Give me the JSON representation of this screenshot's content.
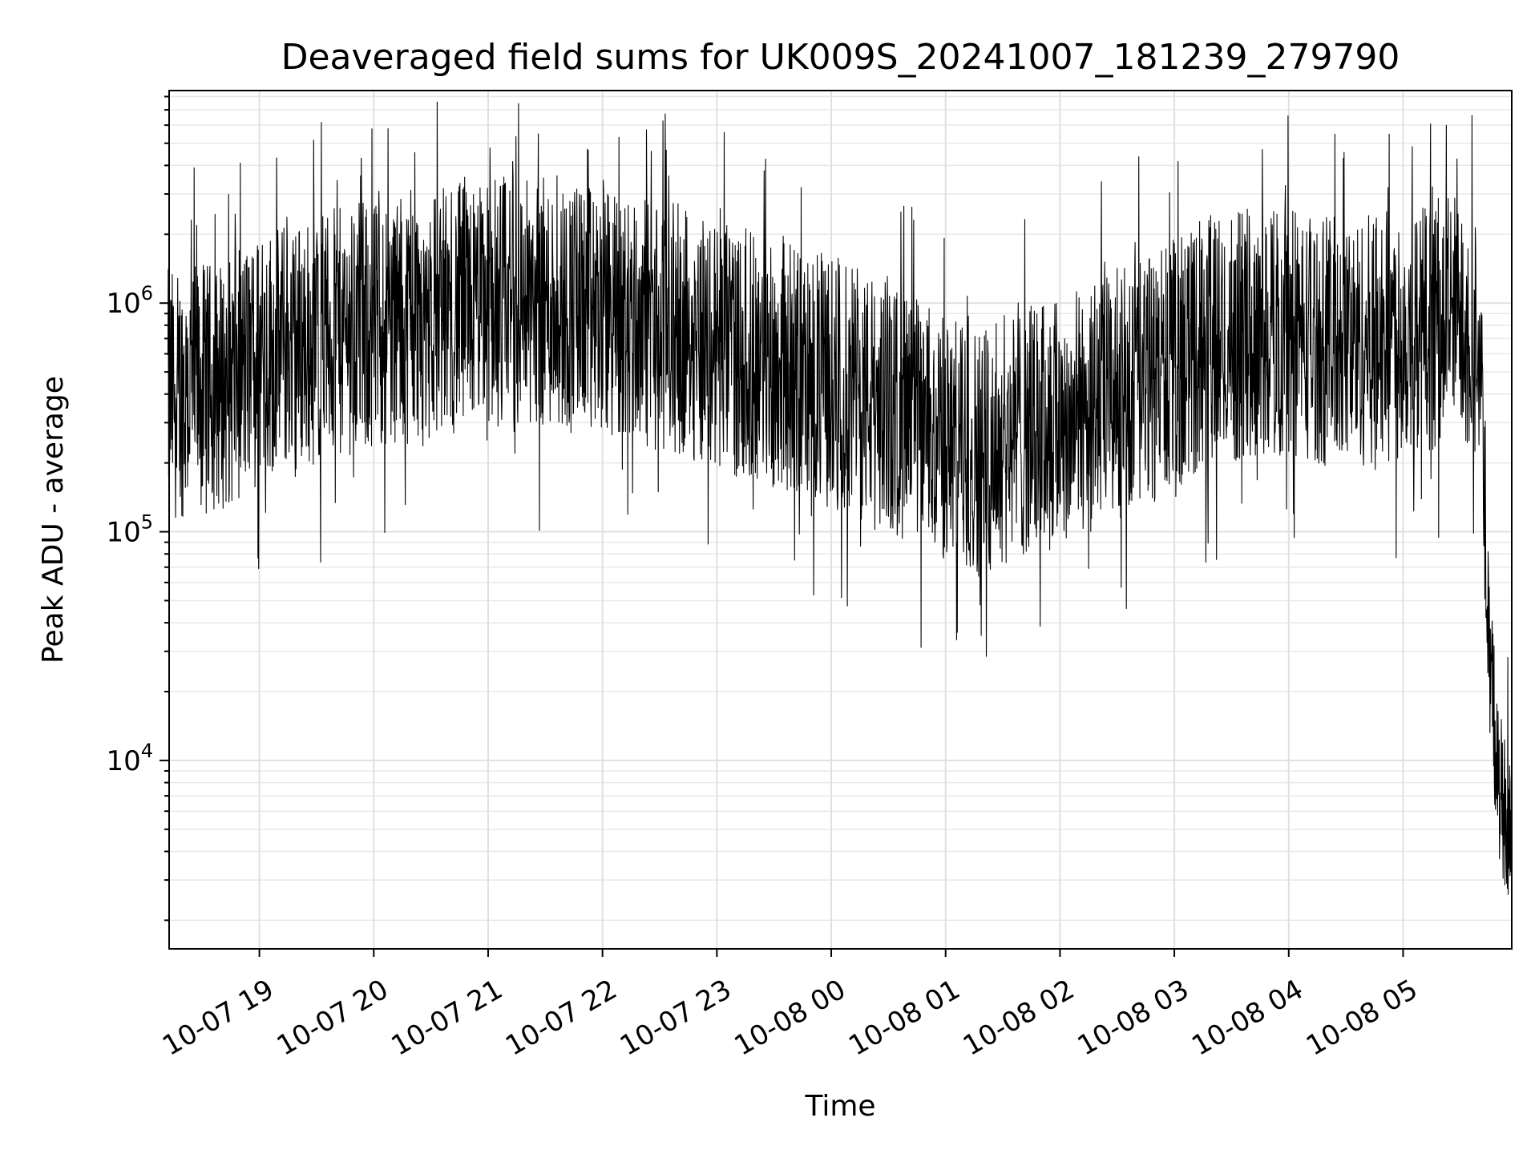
{
  "chart_data": {
    "type": "line",
    "title": "Deaveraged field sums for UK009S_20241007_181239_279790",
    "xlabel": "Time",
    "ylabel": "Peak ADU - average",
    "yscale": "log",
    "xlim": [
      "2024-10-07 18:12:39",
      "2024-10-08 05:57:00"
    ],
    "ylim": [
      1500,
      8500000
    ],
    "grid": true,
    "line_color": "#000000",
    "x_ticks": [
      {
        "label": "10-07 19",
        "time": "2024-10-07 19:00"
      },
      {
        "label": "10-07 20",
        "time": "2024-10-07 20:00"
      },
      {
        "label": "10-07 21",
        "time": "2024-10-07 21:00"
      },
      {
        "label": "10-07 22",
        "time": "2024-10-07 22:00"
      },
      {
        "label": "10-07 23",
        "time": "2024-10-07 23:00"
      },
      {
        "label": "10-08 00",
        "time": "2024-10-08 00:00"
      },
      {
        "label": "10-08 01",
        "time": "2024-10-08 01:00"
      },
      {
        "label": "10-08 02",
        "time": "2024-10-08 02:00"
      },
      {
        "label": "10-08 03",
        "time": "2024-10-08 03:00"
      },
      {
        "label": "10-08 04",
        "time": "2024-10-08 04:00"
      },
      {
        "label": "10-08 05",
        "time": "2024-10-08 05:00"
      }
    ],
    "y_ticks": [
      {
        "base": "10",
        "exp": "4",
        "value": 10000
      },
      {
        "base": "10",
        "exp": "5",
        "value": 100000
      },
      {
        "base": "10",
        "exp": "6",
        "value": 1000000
      }
    ],
    "series": [
      {
        "x": [
          "2024-10-07 18:12",
          "2024-10-07 18:30",
          "2024-10-07 18:45",
          "2024-10-07 19:00",
          "2024-10-07 19:15",
          "2024-10-07 19:30",
          "2024-10-07 19:45",
          "2024-10-07 20:00",
          "2024-10-07 20:15",
          "2024-10-07 20:30",
          "2024-10-07 20:45",
          "2024-10-07 21:00",
          "2024-10-07 21:15",
          "2024-10-07 21:30",
          "2024-10-07 21:45",
          "2024-10-07 22:00",
          "2024-10-07 22:15",
          "2024-10-07 22:30",
          "2024-10-07 22:45",
          "2024-10-07 23:00",
          "2024-10-07 23:15",
          "2024-10-07 23:30",
          "2024-10-07 23:45",
          "2024-10-08 00:00",
          "2024-10-08 00:15",
          "2024-10-08 00:30",
          "2024-10-08 00:45",
          "2024-10-08 01:00",
          "2024-10-08 01:15",
          "2024-10-08 01:30",
          "2024-10-08 01:45",
          "2024-10-08 02:00",
          "2024-10-08 02:15",
          "2024-10-08 02:30",
          "2024-10-08 02:45",
          "2024-10-08 03:00",
          "2024-10-08 03:15",
          "2024-10-08 03:30",
          "2024-10-08 03:45",
          "2024-10-08 04:00",
          "2024-10-08 04:15",
          "2024-10-08 04:30",
          "2024-10-08 04:45",
          "2024-10-08 05:00",
          "2024-10-08 05:15",
          "2024-10-08 05:30",
          "2024-10-08 05:40",
          "2024-10-08 05:45",
          "2024-10-08 05:50",
          "2024-10-08 05:57"
        ],
        "y": [
          400000,
          420000,
          450000,
          600000,
          650000,
          700000,
          750000,
          800000,
          850000,
          900000,
          950000,
          1000000,
          1050000,
          1000000,
          950000,
          900000,
          850000,
          800000,
          750000,
          650000,
          600000,
          550000,
          500000,
          450000,
          400000,
          350000,
          300000,
          250000,
          230000,
          250000,
          280000,
          300000,
          350000,
          400000,
          450000,
          550000,
          650000,
          700000,
          750000,
          750000,
          700000,
          650000,
          700000,
          750000,
          800000,
          900000,
          700000,
          30000,
          8000,
          5000
        ]
      }
    ]
  }
}
